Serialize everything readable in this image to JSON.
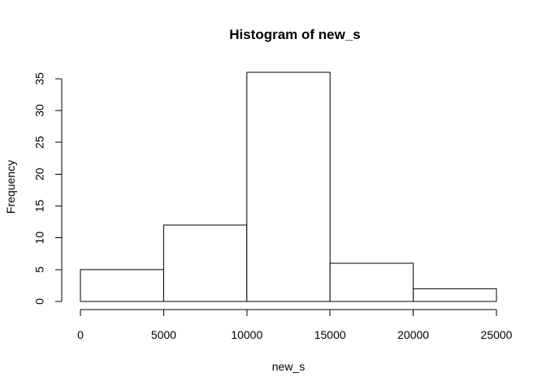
{
  "chart_data": {
    "type": "bar",
    "title": "Histogram of new_s",
    "xlabel": "new_s",
    "ylabel": "Frequency",
    "bins": [
      {
        "start": 0,
        "end": 5000,
        "count": 5
      },
      {
        "start": 5000,
        "end": 10000,
        "count": 12
      },
      {
        "start": 10000,
        "end": 15000,
        "count": 36
      },
      {
        "start": 15000,
        "end": 20000,
        "count": 6
      },
      {
        "start": 20000,
        "end": 25000,
        "count": 2
      }
    ],
    "x_ticks": [
      0,
      5000,
      10000,
      15000,
      20000,
      25000
    ],
    "y_ticks": [
      0,
      5,
      10,
      15,
      20,
      25,
      30,
      35
    ],
    "xlim": [
      0,
      25000
    ],
    "ylim": [
      0,
      36
    ],
    "grid": false,
    "fill_color": "#ffffff",
    "stroke_color": "#000000"
  }
}
